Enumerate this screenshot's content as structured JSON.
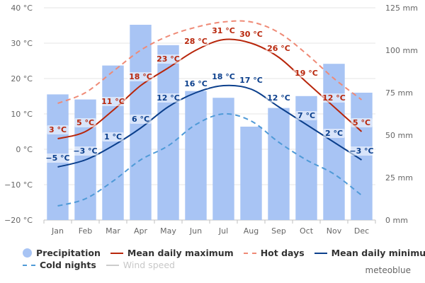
{
  "chart_data": {
    "type": "bar",
    "categories": [
      "Jan",
      "Feb",
      "Mar",
      "Apr",
      "May",
      "Jun",
      "Jul",
      "Aug",
      "Sep",
      "Oct",
      "Nov",
      "Dec"
    ],
    "y_left": {
      "unit": "°C",
      "range": [
        -20,
        40
      ],
      "ticks": [
        40,
        30,
        20,
        10,
        0,
        -10,
        -20
      ],
      "tick_labels": [
        "40 °C",
        "30 °C",
        "20 °C",
        "10 °C",
        "0 °C",
        "−10 °C",
        "−20 °C"
      ]
    },
    "y_right": {
      "unit": "mm",
      "range": [
        0,
        125
      ],
      "ticks": [
        125,
        100,
        75,
        50,
        25,
        0
      ],
      "tick_labels": [
        "125 mm",
        "100 mm",
        "75 mm",
        "50 mm",
        "25 mm",
        "0 mm"
      ]
    },
    "grid": true,
    "legend_position": "bottom",
    "series": [
      {
        "name": "Precipitation",
        "kind": "bar",
        "axis": "right",
        "color": "#a8c4f4",
        "values": [
          74,
          71,
          91,
          115,
          103,
          76,
          72,
          55,
          66,
          73,
          92,
          75
        ]
      },
      {
        "name": "Mean daily maximum",
        "kind": "line",
        "axis": "left",
        "color": "#b8260b",
        "values": [
          3,
          5,
          11,
          18,
          23,
          28,
          31,
          30,
          26,
          19,
          12,
          5
        ],
        "labels": [
          "3 °C",
          "5 °C",
          "11 °C",
          "18 °C",
          "23 °C",
          "28 °C",
          "31 °C",
          "30 °C",
          "26 °C",
          "19 °C",
          "12 °C",
          "5 °C"
        ]
      },
      {
        "name": "Hot days",
        "kind": "dash",
        "axis": "left",
        "color": "#ef8a76",
        "values": [
          13,
          16,
          22,
          28,
          32,
          34.5,
          36,
          36,
          33,
          27,
          20,
          14
        ]
      },
      {
        "name": "Mean daily minimum",
        "kind": "line",
        "axis": "left",
        "color": "#0b3f8c",
        "values": [
          -5,
          -3,
          1,
          6,
          12,
          16,
          18,
          17,
          12,
          7,
          2,
          -3
        ],
        "labels": [
          "−5 °C",
          "−3 °C",
          "1 °C",
          "6 °C",
          "12 °C",
          "16 °C",
          "18 °C",
          "17 °C",
          "12 °C",
          "7 °C",
          "2 °C",
          "−3 °C"
        ]
      },
      {
        "name": "Cold nights",
        "kind": "dash",
        "axis": "left",
        "color": "#4f9ad7",
        "values": [
          -16,
          -14,
          -9,
          -3,
          1,
          7,
          10,
          8,
          2,
          -3,
          -7,
          -13
        ]
      }
    ]
  },
  "legend": {
    "items": [
      {
        "label": "Precipitation",
        "style": "dot",
        "color": "#a8c4f4",
        "enabled": true
      },
      {
        "label": "Mean daily maximum",
        "style": "line",
        "color": "#b8260b",
        "enabled": true
      },
      {
        "label": "Hot days",
        "style": "dash",
        "color": "#ef8a76",
        "enabled": true
      },
      {
        "label": "Mean daily minimum",
        "style": "line",
        "color": "#0b3f8c",
        "enabled": true
      },
      {
        "label": "Cold nights",
        "style": "dash",
        "color": "#4f9ad7",
        "enabled": true
      },
      {
        "label": "Wind speed",
        "style": "line",
        "color": "#cccccc",
        "enabled": false
      }
    ]
  },
  "credit": "meteoblue"
}
